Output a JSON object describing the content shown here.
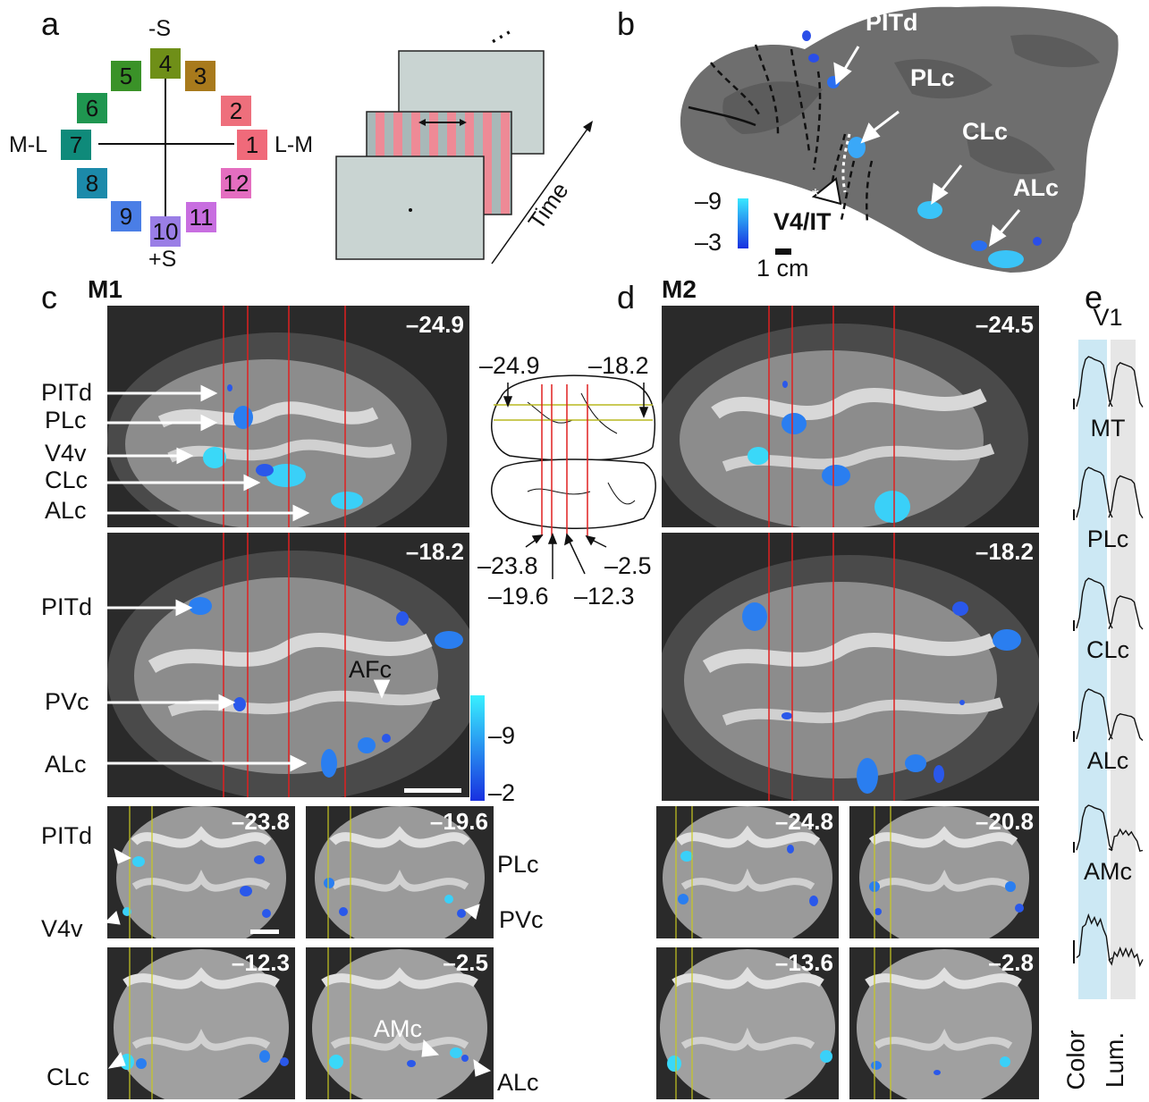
{
  "panels": {
    "a": "a",
    "b": "b",
    "c": "c",
    "d": "d",
    "e": "e"
  },
  "monkeys": {
    "m1": "M1",
    "m2": "M2"
  },
  "color_wheel": {
    "axis_labels": {
      "top": "-S",
      "bottom": "+S",
      "left": "M-L",
      "right": "L-M"
    },
    "swatches": [
      {
        "num": "1",
        "color": "#f06a7a"
      },
      {
        "num": "2",
        "color": "#ee6f7c"
      },
      {
        "num": "3",
        "color": "#a87a1c"
      },
      {
        "num": "4",
        "color": "#6f8f18"
      },
      {
        "num": "5",
        "color": "#3a9228"
      },
      {
        "num": "6",
        "color": "#1f9650"
      },
      {
        "num": "7",
        "color": "#0f8a7a"
      },
      {
        "num": "8",
        "color": "#1c8aaa"
      },
      {
        "num": "9",
        "color": "#4a7ee6"
      },
      {
        "num": "10",
        "color": "#9a7ee6"
      },
      {
        "num": "11",
        "color": "#c86ee0"
      },
      {
        "num": "12",
        "color": "#e46ec0"
      }
    ]
  },
  "stimulus": {
    "time_label": "Time",
    "ellipsis": "⋯"
  },
  "flatmap": {
    "labels": {
      "pitd": "PITd",
      "plc": "PLc",
      "clc": "CLc",
      "alc": "ALc",
      "v4it": "V4/IT",
      "star": "*"
    },
    "scale": {
      "max": "–9",
      "min": "–3",
      "bar": "1 cm"
    }
  },
  "m1": {
    "sagittal1": {
      "coord": "–24.9",
      "labels": {
        "pitd": "PITd",
        "plc": "PLc",
        "v4v": "V4v",
        "clc": "CLc",
        "alc": "ALc"
      }
    },
    "sagittal2": {
      "coord": "–18.2",
      "labels": {
        "pitd": "PITd",
        "pvc": "PVc",
        "alc": "ALc",
        "afc": "AFc"
      }
    },
    "scale": {
      "max": "–9",
      "min": "–2"
    },
    "coronal": [
      {
        "coord": "–23.8"
      },
      {
        "coord": "–19.6"
      },
      {
        "coord": "–12.3"
      },
      {
        "coord": "–2.5"
      }
    ],
    "coronal_labels": {
      "pitd": "PITd",
      "v4v": "V4v",
      "plc": "PLc",
      "pvc": "PVc",
      "clc": "CLc",
      "amc": "AMc",
      "alc": "ALc"
    }
  },
  "brain_schematic": {
    "top_left": "–24.9",
    "top_right": "–18.2",
    "bottom": [
      "–23.8",
      "–19.6",
      "–12.3",
      "–2.5"
    ]
  },
  "m2": {
    "sagittal1": {
      "coord": "–24.5"
    },
    "sagittal2": {
      "coord": "–18.2"
    },
    "coronal": [
      {
        "coord": "–24.8"
      },
      {
        "coord": "–20.8"
      },
      {
        "coord": "–13.6"
      },
      {
        "coord": "–2.8"
      }
    ]
  },
  "timecourses": {
    "regions": [
      "V1",
      "MT",
      "PLc",
      "CLc",
      "ALc",
      "AMc"
    ],
    "xlabels": {
      "color": "Color",
      "lum": "Lum."
    },
    "colors": {
      "color_band": "#cce8f4",
      "lum_band": "#e6e6e6"
    }
  }
}
